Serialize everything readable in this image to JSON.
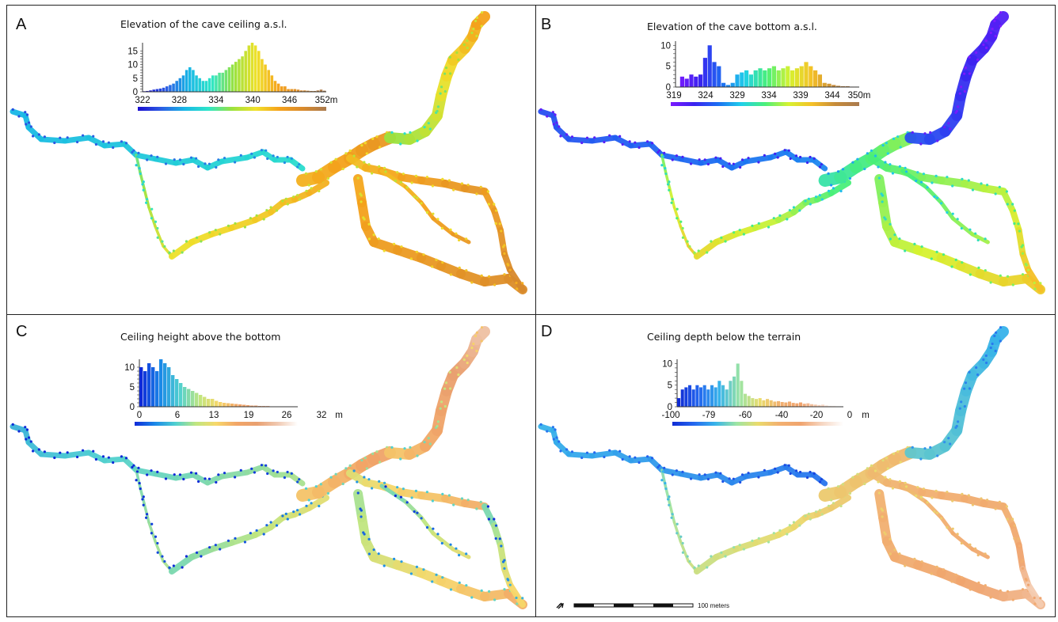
{
  "colors": {
    "rainbow": [
      "#1a0dd0",
      "#2c5de4",
      "#18b7e6",
      "#2ee6c8",
      "#9be23e",
      "#f0e12a",
      "#f5a21c",
      "#d98a2c",
      "#a97a4e"
    ],
    "bottom_ramp": [
      "#7c1aff",
      "#3a23f0",
      "#1c6ef2",
      "#1fd0ea",
      "#49f07a",
      "#d6f230",
      "#f5c028",
      "#c68b3a",
      "#a97a4e"
    ],
    "height_ramp": [
      "#0f2ad8",
      "#1a88e8",
      "#4fd0d0",
      "#bfe680",
      "#f7d86a",
      "#f2a567",
      "#e9a070",
      "#f0c8b0",
      "#ffffff"
    ],
    "depth_ramp": [
      "#102bd4",
      "#2467ef",
      "#37b3ea",
      "#9ce5a4",
      "#eadb6c",
      "#f2b070",
      "#f0a46e",
      "#f6d6c2",
      "#ffffff"
    ],
    "frame": "#222222"
  },
  "panels": [
    {
      "letter": "A",
      "title": "Elevation of the cave ceiling a.s.l.",
      "yticks": [
        "15",
        "10",
        "5",
        "0"
      ],
      "xticks": [
        "322",
        "328",
        "334",
        "340",
        "346",
        "352m"
      ]
    },
    {
      "letter": "B",
      "title": "Elevation of the cave bottom a.s.l.",
      "yticks": [
        "10",
        "5",
        "0"
      ],
      "xticks": [
        "319",
        "324",
        "329",
        "334",
        "339",
        "344",
        "350m"
      ]
    },
    {
      "letter": "C",
      "title": "Ceiling height above the bottom",
      "yticks": [
        "10",
        "5",
        "0"
      ],
      "xticks": [
        "0",
        "6",
        "13",
        "19",
        "26",
        "32",
        "m"
      ]
    },
    {
      "letter": "D",
      "title": "Ceiling depth below the terrain",
      "yticks": [
        "10",
        "5",
        "0"
      ],
      "xticks": [
        "-100",
        "-79",
        "-60",
        "-40",
        "-20",
        "0",
        "m"
      ]
    }
  ],
  "scale": {
    "label": "100 meters",
    "icon": "north-arrow-icon"
  },
  "histograms": {
    "A": [
      0.2,
      0.3,
      0.5,
      0.8,
      1,
      1.2,
      1.5,
      2,
      2.5,
      3,
      4,
      5,
      6,
      8,
      9,
      8,
      6,
      5,
      4,
      4,
      5,
      6,
      6,
      7,
      7,
      8,
      9,
      10,
      11,
      12,
      13,
      15,
      17,
      18,
      17,
      15,
      12,
      10,
      8,
      6,
      4,
      3,
      2,
      2,
      1,
      1,
      1,
      0.8,
      0.5,
      0.5,
      0.4,
      0.3,
      0.3,
      0.5,
      0.8,
      0.4
    ],
    "B": [
      0,
      2.5,
      2,
      3,
      2.5,
      3,
      7,
      10,
      6,
      5,
      1,
      0.5,
      1,
      3,
      3.5,
      4,
      3,
      4,
      4.5,
      4,
      4.5,
      5,
      4,
      4.5,
      5,
      4,
      4.5,
      5,
      6,
      5,
      4,
      3,
      1,
      0.8,
      0.5,
      0.3,
      0.2,
      0.2,
      0.1,
      0.1
    ],
    "C": [
      10,
      9,
      11,
      10,
      9,
      12,
      11,
      10,
      8,
      7,
      6,
      5,
      4.5,
      4,
      3.5,
      3,
      2.5,
      2,
      2,
      1.5,
      1.2,
      1,
      0.9,
      0.8,
      0.7,
      0.6,
      0.5,
      0.4,
      0.3,
      0.3,
      0.2,
      0.2,
      0.2,
      0.1,
      0.1,
      0.1,
      0.1,
      0.05,
      0.05,
      0.05
    ],
    "D": [
      2,
      4,
      4.5,
      5,
      4,
      5,
      4.5,
      5,
      4,
      5,
      4.5,
      6,
      5,
      4,
      6,
      7,
      10,
      6,
      3,
      2.5,
      2,
      1.8,
      2,
      1.5,
      1.8,
      1.5,
      1.2,
      1.3,
      1.1,
      1,
      1.2,
      0.9,
      0.8,
      1,
      0.7,
      0.8,
      0.6,
      0.5,
      0.4,
      0.5,
      0.3,
      0.2,
      0.2,
      0.1,
      0.1
    ]
  }
}
